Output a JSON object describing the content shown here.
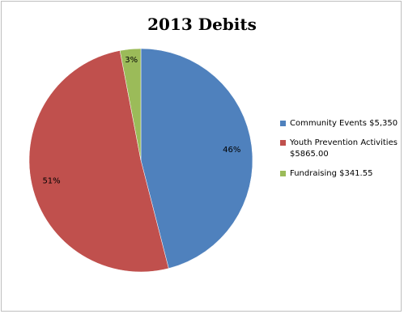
{
  "chart_data": {
    "type": "pie",
    "title": "2013 Debits",
    "slices": [
      {
        "value": 46,
        "label": "46%",
        "color": "#4f81bd",
        "legend_lines": [
          "Community Events  $5,350"
        ]
      },
      {
        "value": 51,
        "label": "51%",
        "color": "#c0504d",
        "legend_lines": [
          "Youth Prevention Activities",
          "$5865.00"
        ]
      },
      {
        "value": 3,
        "label": "3%",
        "color": "#9bbb59",
        "legend_lines": [
          "Fundraising  $341.55"
        ]
      }
    ],
    "legend_position": "right"
  }
}
